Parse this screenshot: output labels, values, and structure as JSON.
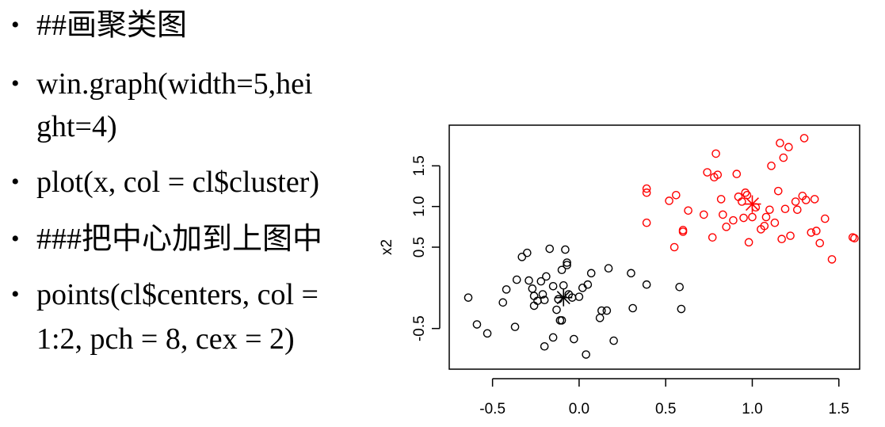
{
  "slide": {
    "bullets": [
      {
        "line1": "##画聚类图",
        "line2": ""
      },
      {
        "line1": "win.graph(width=5,hei",
        "line2": "ght=4)"
      },
      {
        "line1": "plot(x, col = cl$cluster)",
        "line2": ""
      },
      {
        "line1": "###把中心加到上图中",
        "line2": ""
      },
      {
        "line1": "points(cl$centers, col =",
        "line2": "1:2, pch = 8, cex = 2)"
      }
    ],
    "bullet_symbol": "•"
  },
  "colors": {
    "cluster1": "#000000",
    "cluster2": "#ff0000",
    "axis": "#000000"
  },
  "chart_data": {
    "type": "scatter",
    "title": "",
    "xlabel": "",
    "ylabel": "x2",
    "xlim": [
      -0.75,
      1.62
    ],
    "ylim": [
      -1.0,
      2.0
    ],
    "xticks": [
      "-0.5",
      "0.0",
      "0.5",
      "1.0",
      "1.5"
    ],
    "yticks": [
      "-0.5",
      "0.5",
      "1.0",
      "1.5"
    ],
    "grid": false,
    "series": [
      {
        "color": "#000000",
        "marker": "circle",
        "points": [
          [
            -0.64,
            -0.12
          ],
          [
            -0.59,
            -0.45
          ],
          [
            -0.53,
            -0.56
          ],
          [
            -0.44,
            -0.18
          ],
          [
            -0.42,
            -0.02
          ],
          [
            -0.37,
            -0.48
          ],
          [
            -0.36,
            0.1
          ],
          [
            -0.33,
            0.38
          ],
          [
            -0.3,
            0.43
          ],
          [
            -0.29,
            0.09
          ],
          [
            -0.27,
            -0.01
          ],
          [
            -0.26,
            -0.1
          ],
          [
            -0.26,
            -0.22
          ],
          [
            -0.24,
            -0.16
          ],
          [
            -0.22,
            0.08
          ],
          [
            -0.21,
            -0.08
          ],
          [
            -0.2,
            -0.15
          ],
          [
            -0.2,
            -0.72
          ],
          [
            -0.19,
            0.14
          ],
          [
            -0.17,
            0.48
          ],
          [
            -0.15,
            -0.61
          ],
          [
            -0.15,
            0.02
          ],
          [
            -0.13,
            -0.27
          ],
          [
            -0.12,
            -0.14
          ],
          [
            -0.11,
            -0.4
          ],
          [
            -0.1,
            -0.4
          ],
          [
            -0.1,
            0.22
          ],
          [
            -0.09,
            0.03
          ],
          [
            -0.08,
            0.47
          ],
          [
            -0.07,
            0.31
          ],
          [
            -0.07,
            0.28
          ],
          [
            -0.06,
            -0.08
          ],
          [
            -0.04,
            -0.12
          ],
          [
            -0.03,
            -0.63
          ],
          [
            0.0,
            -0.11
          ],
          [
            0.02,
            0.0
          ],
          [
            0.04,
            -0.82
          ],
          [
            0.05,
            0.04
          ],
          [
            0.07,
            0.18
          ],
          [
            0.12,
            -0.37
          ],
          [
            0.13,
            -0.28
          ],
          [
            0.16,
            -0.28
          ],
          [
            0.17,
            0.24
          ],
          [
            0.2,
            -0.65
          ],
          [
            0.3,
            0.18
          ],
          [
            0.31,
            -0.25
          ],
          [
            0.39,
            0.04
          ],
          [
            0.58,
            0.01
          ],
          [
            0.59,
            -0.26
          ]
        ]
      },
      {
        "color": "#ff0000",
        "marker": "circle",
        "points": [
          [
            0.39,
            1.22
          ],
          [
            0.39,
            1.17
          ],
          [
            0.39,
            0.8
          ],
          [
            0.52,
            1.07
          ],
          [
            0.55,
            0.5
          ],
          [
            0.56,
            1.14
          ],
          [
            0.6,
            0.71
          ],
          [
            0.6,
            0.69
          ],
          [
            0.63,
            0.95
          ],
          [
            0.72,
            0.9
          ],
          [
            0.74,
            1.42
          ],
          [
            0.77,
            0.62
          ],
          [
            0.78,
            1.36
          ],
          [
            0.79,
            1.65
          ],
          [
            0.8,
            1.39
          ],
          [
            0.82,
            1.09
          ],
          [
            0.83,
            0.9
          ],
          [
            0.85,
            0.75
          ],
          [
            0.89,
            0.83
          ],
          [
            0.91,
            1.4
          ],
          [
            0.92,
            1.12
          ],
          [
            0.94,
            1.06
          ],
          [
            0.95,
            0.86
          ],
          [
            0.96,
            1.17
          ],
          [
            0.97,
            1.14
          ],
          [
            0.98,
            0.56
          ],
          [
            1.0,
            0.87
          ],
          [
            1.02,
            0.99
          ],
          [
            1.05,
            0.72
          ],
          [
            1.07,
            0.76
          ],
          [
            1.08,
            0.87
          ],
          [
            1.1,
            0.96
          ],
          [
            1.11,
            1.5
          ],
          [
            1.13,
            0.8
          ],
          [
            1.15,
            1.19
          ],
          [
            1.16,
            1.78
          ],
          [
            1.17,
            0.6
          ],
          [
            1.18,
            1.6
          ],
          [
            1.19,
            0.97
          ],
          [
            1.21,
            1.73
          ],
          [
            1.22,
            0.64
          ],
          [
            1.25,
            1.06
          ],
          [
            1.26,
            0.96
          ],
          [
            1.29,
            1.13
          ],
          [
            1.3,
            1.84
          ],
          [
            1.31,
            1.08
          ],
          [
            1.34,
            0.68
          ],
          [
            1.36,
            1.09
          ],
          [
            1.37,
            0.7
          ],
          [
            1.39,
            0.55
          ],
          [
            1.42,
            0.85
          ],
          [
            1.46,
            0.35
          ],
          [
            1.58,
            0.62
          ],
          [
            1.59,
            0.61
          ]
        ]
      }
    ],
    "centers": [
      {
        "color": "#000000",
        "marker": "asterisk",
        "x": -0.09,
        "y": -0.12
      },
      {
        "color": "#ff0000",
        "marker": "asterisk",
        "x": 1.0,
        "y": 1.03
      }
    ]
  }
}
